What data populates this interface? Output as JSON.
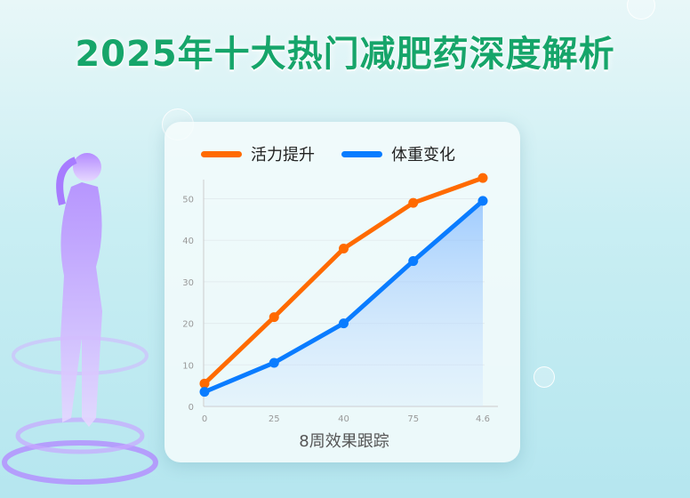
{
  "title": "2025年十大热门减肥药深度解析",
  "colors": {
    "title": "#16a56a",
    "orange": "#ff6a00",
    "blue": "#0a7cff"
  },
  "chart_data": {
    "type": "line",
    "title": "",
    "xlabel": "8周效果跟踪",
    "ylabel": "",
    "categories": [
      "0",
      "25",
      "40",
      "75",
      "4.6"
    ],
    "ylim": [
      0,
      55
    ],
    "yticks": [
      0,
      10,
      20,
      30,
      40,
      50
    ],
    "grid": true,
    "legend_position": "top",
    "series": [
      {
        "name": "活力提升",
        "color": "#ff6a00",
        "values": [
          5.5,
          21.5,
          38,
          49,
          55
        ]
      },
      {
        "name": "体重变化",
        "color": "#0a7cff",
        "values": [
          3.5,
          10.5,
          20,
          35,
          49.5
        ],
        "area_fill": true
      }
    ]
  }
}
